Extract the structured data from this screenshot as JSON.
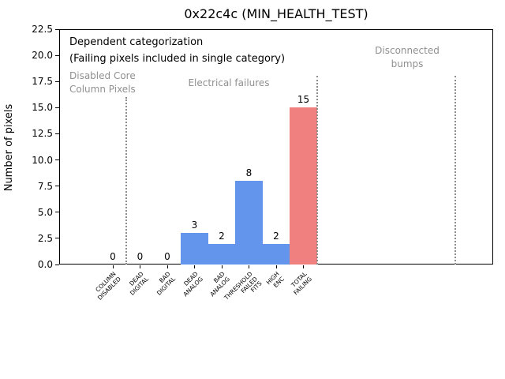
{
  "figure": {
    "title": "0x22c4c (MIN_HEALTH_TEST)"
  },
  "annotations": {
    "dependent_line1": "Dependent categorization",
    "dependent_line2": "(Failing pixels included in single category)",
    "section_disabled_core": "Disabled Core\nColumn Pixels",
    "section_electrical": "Electrical failures",
    "section_disconnected": "Disconnected\nbumps"
  },
  "chart_data": {
    "type": "bar",
    "title": "0x22c4c (MIN_HEALTH_TEST)",
    "xlabel": "",
    "ylabel": "Number of pixels",
    "ylim": [
      0,
      22.5
    ],
    "ytick_labels": [
      "0.0",
      "2.5",
      "5.0",
      "7.5",
      "10.0",
      "12.5",
      "15.0",
      "17.5",
      "20.0",
      "22.5"
    ],
    "grid": false,
    "legend": null,
    "categories": [
      "COLUMN\nDISABLED",
      "DEAD\nDIGITAL",
      "BAD\nDIGITAL",
      "DEAD\nANALOG",
      "BAD\nANALOG",
      "THRESHOLD\nFAILED\nFITS",
      "HIGH\nENC",
      "TOTAL\nFAILING"
    ],
    "values": [
      0,
      0,
      0,
      3,
      2,
      8,
      2,
      15
    ],
    "bar_value_labels": [
      "0",
      "0",
      "0",
      "3",
      "2",
      "8",
      "2",
      "15"
    ],
    "bar_color_keys": [
      "blue",
      "blue",
      "blue",
      "blue",
      "blue",
      "blue",
      "blue",
      "red"
    ],
    "sections": [
      {
        "label": "Disabled Core\nColumn Pixels",
        "categories": [
          "COLUMN\nDISABLED"
        ]
      },
      {
        "label": "Electrical failures",
        "categories": [
          "DEAD\nDIGITAL",
          "BAD\nDIGITAL",
          "DEAD\nANALOG",
          "BAD\nANALOG",
          "THRESHOLD\nFAILED\nFITS",
          "HIGH\nENC",
          "TOTAL\nFAILING"
        ]
      },
      {
        "label": "Disconnected\nbumps",
        "categories": []
      }
    ]
  },
  "colors": {
    "bar_blue": "#6495ED",
    "bar_red": "#F08080",
    "gray_text": "#909090",
    "divider_gray": "#8c8c8c"
  }
}
